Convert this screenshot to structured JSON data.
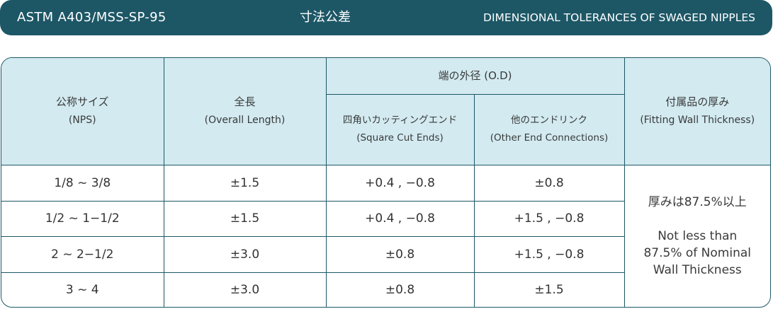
{
  "banner": {
    "standard": "ASTM A403/MSS-SP-95",
    "title_jp": "寸法公差",
    "title_en": "DIMENSIONAL TOLERANCES OF SWAGED NIPPLES"
  },
  "headers": {
    "nps_jp": "公称サイズ",
    "nps_en": "(NPS)",
    "length_jp": "全長",
    "length_en": "(Overall Length)",
    "od_group": "端の外径 (O.D)",
    "square_jp": "四角いカッティングエンド",
    "square_en": "(Square Cut Ends)",
    "other_jp": "他のエンドリンク",
    "other_en": "(Other End Connections)",
    "wall_jp": "付属品の厚み",
    "wall_en": "(Fitting Wall Thickness)"
  },
  "rows": [
    {
      "nps": "1/8 ~ 3/8",
      "length": "±1.5",
      "square": "+0.4 , −0.8",
      "other": "±0.8"
    },
    {
      "nps": "1/2 ~ 1−1/2",
      "length": "±1.5",
      "square": "+0.4 , −0.8",
      "other": "+1.5 , −0.8"
    },
    {
      "nps": "2 ~ 2−1/2",
      "length": "±3.0",
      "square": "±0.8",
      "other": "+1.5 , −0.8"
    },
    {
      "nps": "3 ~ 4",
      "length": "±3.0",
      "square": "±0.8",
      "other": "±1.5"
    }
  ],
  "wall_note": {
    "jp": "厚みは87.5%以上",
    "en_line1": "Not less than",
    "en_line2": "87.5% of Nominal",
    "en_line3": "Wall Thickness"
  },
  "colors": {
    "banner": "#1d5766",
    "header_bg": "#d2eaf0",
    "border": "#1d5766"
  }
}
